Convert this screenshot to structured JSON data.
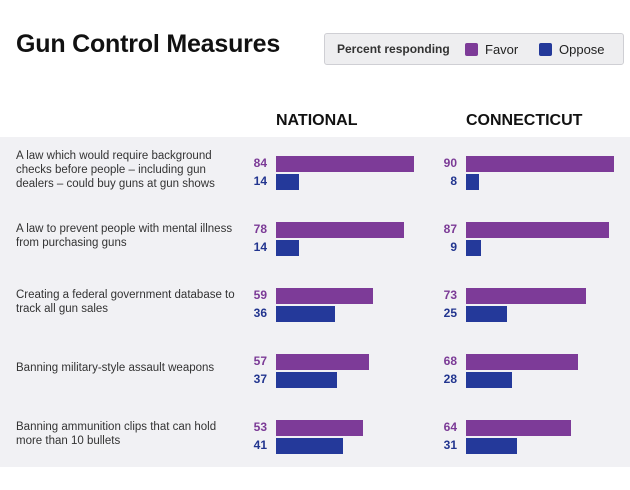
{
  "title": "Gun Control Measures",
  "legend": {
    "label": "Percent responding",
    "favor": "Favor",
    "oppose": "Oppose"
  },
  "colors": {
    "favor": "#7d3b98",
    "oppose": "#24399a",
    "band": "#f1f1f4"
  },
  "chart_data": {
    "type": "bar",
    "orientation": "horizontal",
    "title": "Gun Control Measures",
    "legend_title": "Percent responding",
    "groups": [
      "NATIONAL",
      "CONNECTICUT"
    ],
    "series_names": [
      "Favor",
      "Oppose"
    ],
    "xlim": [
      0,
      100
    ],
    "rows": [
      {
        "question": "A law which would require background checks before people – including gun dealers – could buy guns at gun shows",
        "national": {
          "favor": 84,
          "oppose": 14
        },
        "connecticut": {
          "favor": 90,
          "oppose": 8
        }
      },
      {
        "question": "A law to prevent people with mental illness from purchasing guns",
        "national": {
          "favor": 78,
          "oppose": 14
        },
        "connecticut": {
          "favor": 87,
          "oppose": 9
        }
      },
      {
        "question": "Creating a federal government database to track all gun sales",
        "national": {
          "favor": 59,
          "oppose": 36
        },
        "connecticut": {
          "favor": 73,
          "oppose": 25
        }
      },
      {
        "question": "Banning military-style assault weapons",
        "national": {
          "favor": 57,
          "oppose": 37
        },
        "connecticut": {
          "favor": 68,
          "oppose": 28
        }
      },
      {
        "question": "Banning ammunition clips that can hold more than 10 bullets",
        "national": {
          "favor": 53,
          "oppose": 41
        },
        "connecticut": {
          "favor": 64,
          "oppose": 31
        }
      }
    ]
  }
}
